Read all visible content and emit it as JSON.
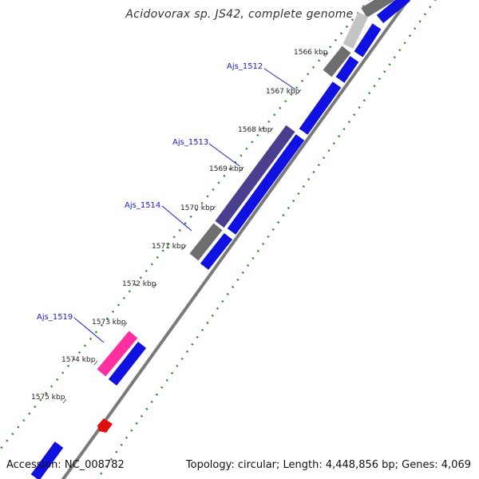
{
  "title": "Acidovorax sp. JS42, complete genome",
  "accession_text": "Accession: NC_008782",
  "summary_text": "Topology: circular; Length: 4,448,856 bp; Genes: 4,069",
  "ticks": [
    {
      "label": "1566 kbp"
    },
    {
      "label": "1567 kbp"
    },
    {
      "label": "1568 kbp"
    },
    {
      "label": "1569 kbp"
    },
    {
      "label": "1570 kbp"
    },
    {
      "label": "1571 kbp"
    },
    {
      "label": "1572 kbp"
    },
    {
      "label": "1573 kbp"
    },
    {
      "label": "1574 kbp"
    },
    {
      "label": "1575 kbp"
    }
  ],
  "gene_labels": [
    {
      "label": "Ajs_1512"
    },
    {
      "label": "Ajs_1513"
    },
    {
      "label": "Ajs_1514"
    },
    {
      "label": "Ajs_1519"
    }
  ],
  "colors": {
    "cds_blue": "#1010e0",
    "feature_gray": "#6e6e6e",
    "feature_light_gray": "#c4c4c4",
    "feature_purple": "#4a3f8e",
    "feature_pink": "#ff2fa0",
    "feature_red": "#e01010",
    "backbone": "#8a8a8a",
    "dotted_track": "#2a8a2a",
    "label_blue": "#1a1acc"
  }
}
